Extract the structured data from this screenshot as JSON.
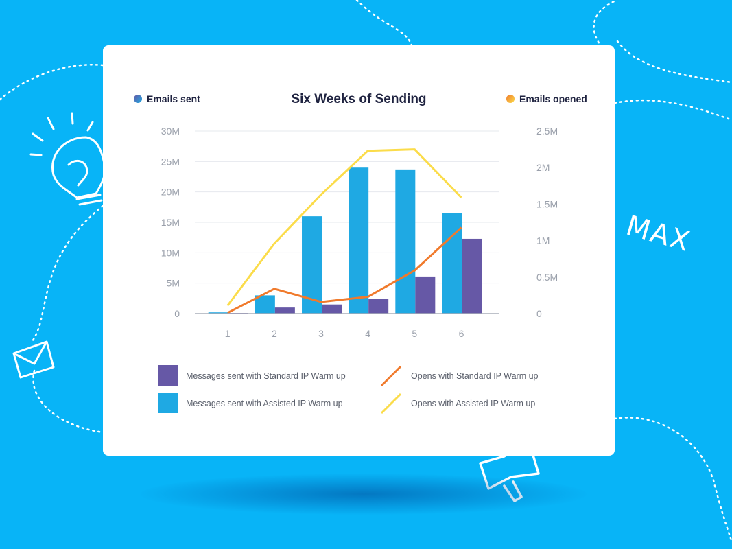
{
  "decor": {
    "max_label": "MAX"
  },
  "chart_data": {
    "type": "bar+line",
    "title": "Six Weeks of Sending",
    "left_axis_label": "Emails sent",
    "right_axis_label": "Emails opened",
    "categories": [
      "1",
      "2",
      "3",
      "4",
      "5",
      "6"
    ],
    "left_ylim": [
      0,
      30000000
    ],
    "left_ticks": [
      "0",
      "5M",
      "10M",
      "15M",
      "20M",
      "25M",
      "30M"
    ],
    "right_ylim": [
      0,
      2500000
    ],
    "right_ticks": [
      "0",
      "0.5M",
      "1M",
      "1.5M",
      "2M",
      "2.5M"
    ],
    "grid": true,
    "bar_series": [
      {
        "name": "Messages sent with Assisted IP Warm up",
        "color": "#1fa9e3",
        "values": [
          200000,
          3000000,
          16000000,
          24000000,
          23700000,
          16500000
        ]
      },
      {
        "name": "Messages sent with Standard IP Warm up",
        "color": "#6658a6",
        "values": [
          100000,
          1000000,
          1500000,
          2400000,
          6100000,
          12300000
        ]
      }
    ],
    "line_series": [
      {
        "name": "Opens with Standard IP Warm up",
        "color": "#f07a2c",
        "values": [
          10000,
          340000,
          160000,
          230000,
          590000,
          1180000
        ]
      },
      {
        "name": "Opens with Assisted IP Warm up",
        "color": "#fbdc4a",
        "values": [
          110000,
          960000,
          1630000,
          2230000,
          2250000,
          1590000
        ]
      }
    ],
    "legend": {
      "placement": "bottom",
      "items": [
        {
          "label": "Messages sent with Standard IP Warm up",
          "kind": "bar",
          "color": "#6658a6"
        },
        {
          "label": "Opens with Standard IP Warm up",
          "kind": "line",
          "color": "#f07a2c"
        },
        {
          "label": "Messages sent with Assisted IP Warm up",
          "kind": "bar",
          "color": "#1fa9e3"
        },
        {
          "label": "Opens with Assisted IP Warm up",
          "kind": "line",
          "color": "#fbdc4a"
        }
      ]
    }
  }
}
